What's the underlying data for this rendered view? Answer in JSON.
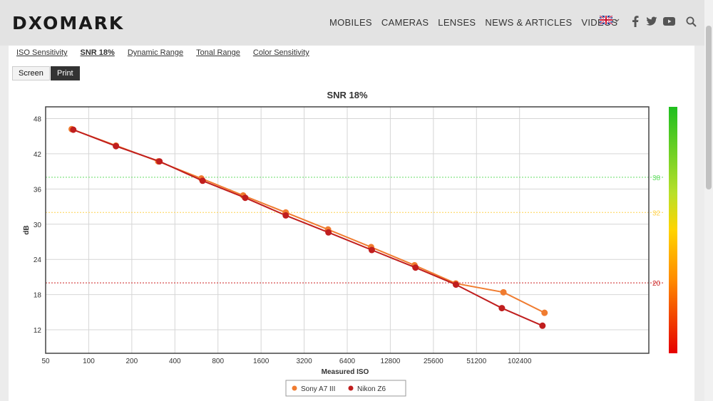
{
  "header": {
    "logo": "DXOMARK",
    "nav": [
      "MOBILES",
      "CAMERAS",
      "LENSES",
      "NEWS & ARTICLES",
      "VIDEOS"
    ]
  },
  "icons": [
    "uk-flag-icon",
    "chevron-down-icon",
    "facebook-icon",
    "twitter-icon",
    "youtube-icon",
    "search-icon"
  ],
  "tabs": [
    {
      "label": "ISO Sensitivity",
      "active": false
    },
    {
      "label": "SNR 18%",
      "active": true
    },
    {
      "label": "Dynamic Range",
      "active": false
    },
    {
      "label": "Tonal Range",
      "active": false
    },
    {
      "label": "Color Sensitivity",
      "active": false
    }
  ],
  "buttons": {
    "screen": "Screen",
    "print": "Print"
  },
  "colors": {
    "sony": "#f07c30",
    "nikon": "#c01e1e",
    "green_ref": "#66dd66",
    "yellow_ref": "#ffd24d",
    "red_ref": "#cc2222"
  },
  "chart_data": {
    "type": "line",
    "title": "SNR 18%",
    "xlabel": "Measured ISO",
    "ylabel": "dB",
    "x_scale": "log2",
    "xticks": [
      50,
      100,
      200,
      400,
      800,
      1600,
      3200,
      6400,
      12800,
      25600,
      51200,
      102400
    ],
    "yticks": [
      12,
      18,
      24,
      30,
      36,
      42,
      48
    ],
    "xlim": [
      50,
      819200
    ],
    "ylim": [
      8,
      50
    ],
    "grid": true,
    "reference_lines": [
      {
        "value": 38,
        "label": "38",
        "color": "#66dd66"
      },
      {
        "value": 32,
        "label": "32",
        "color": "#ffd24d"
      },
      {
        "value": 20,
        "label": "20",
        "color": "#cc2222"
      }
    ],
    "series": [
      {
        "name": "Sony A7 III",
        "color": "#f07c30",
        "x": [
          76,
          155,
          306,
          612,
          1200,
          2380,
          4700,
          9400,
          18900,
          36700,
          79000,
          153000
        ],
        "y": [
          46.2,
          43.4,
          40.7,
          37.8,
          34.9,
          32.0,
          29.1,
          26.1,
          23.0,
          19.9,
          18.4,
          14.9
        ]
      },
      {
        "name": "Nikon Z6",
        "color": "#c01e1e",
        "x": [
          78,
          155,
          312,
          625,
          1240,
          2380,
          4730,
          9500,
          19200,
          36800,
          77000,
          148000
        ],
        "y": [
          46.1,
          43.3,
          40.7,
          37.4,
          34.5,
          31.5,
          28.6,
          25.6,
          22.6,
          19.7,
          15.7,
          12.7
        ]
      }
    ],
    "legend_position": "bottom-center"
  }
}
